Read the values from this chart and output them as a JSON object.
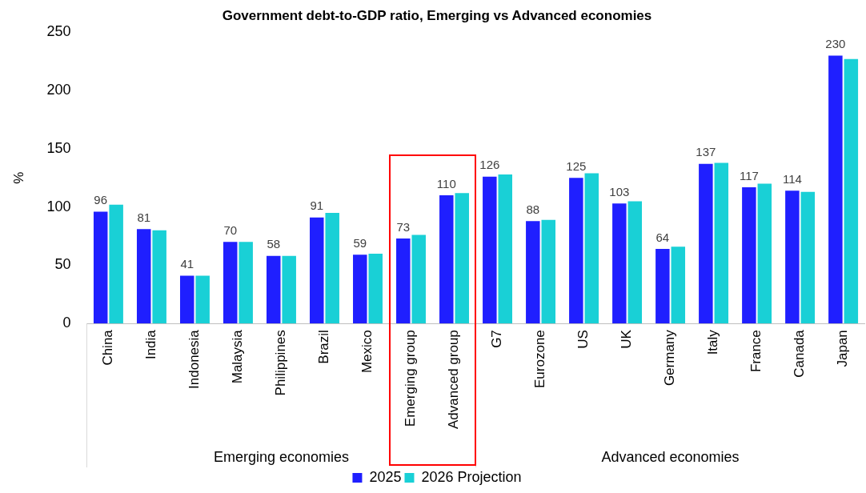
{
  "chart_data": {
    "type": "bar",
    "title": "Government debt-to-GDP ratio, Emerging vs Advanced economies",
    "ylabel": "%",
    "categories": [
      "China",
      "India",
      "Indonesia",
      "Malaysia",
      "Philippines",
      "Brazil",
      "Mexico",
      "Emerging group",
      "Advanced group",
      "G7",
      "Eurozone",
      "US",
      "UK",
      "Germany",
      "Italy",
      "France",
      "Canada",
      "Japan"
    ],
    "series": [
      {
        "name": "2025",
        "color": "#1f1fff",
        "values": [
          96,
          81,
          41,
          70,
          58,
          91,
          59,
          73,
          110,
          126,
          88,
          125,
          103,
          64,
          137,
          117,
          114,
          230
        ],
        "value_labels": [
          "96",
          "81",
          "41",
          "70",
          "58",
          "91",
          "59",
          "73",
          "110",
          "126",
          "88",
          "125",
          "103",
          "64",
          "137",
          "117",
          "114",
          "230"
        ]
      },
      {
        "name": "2026 Projection",
        "color": "#19d0d6",
        "values": [
          102,
          80,
          41,
          70,
          58,
          95,
          60,
          76,
          112,
          128,
          89,
          129,
          105,
          66,
          138,
          120,
          113,
          227
        ]
      }
    ],
    "annotations": [
      "Emerging economies",
      "Advanced economies"
    ],
    "ylim": [
      0,
      250
    ],
    "yticks": [
      0,
      50,
      100,
      150,
      200,
      250
    ],
    "grid": false,
    "legend": "bottom"
  }
}
